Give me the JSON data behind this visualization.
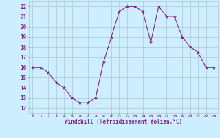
{
  "x": [
    0,
    1,
    2,
    3,
    4,
    5,
    6,
    7,
    8,
    9,
    10,
    11,
    12,
    13,
    14,
    15,
    16,
    17,
    18,
    19,
    20,
    21,
    22,
    23
  ],
  "y": [
    16,
    16,
    15.5,
    14.5,
    14,
    13,
    12.5,
    12.5,
    13,
    16.5,
    19,
    21.5,
    22,
    22,
    21.5,
    18.5,
    22,
    21,
    21,
    19,
    18,
    17.5,
    16,
    16
  ],
  "line_color": "#882288",
  "marker": "*",
  "marker_size": 3,
  "bg_color": "#cceeff",
  "grid_color": "#aabbbb",
  "xlabel": "Windchill (Refroidissement éolien,°C)",
  "xlabel_color": "#882288",
  "ylabel_ticks": [
    12,
    13,
    14,
    15,
    16,
    17,
    18,
    19,
    20,
    21,
    22
  ],
  "xtick_labels": [
    "0",
    "1",
    "2",
    "3",
    "4",
    "5",
    "6",
    "7",
    "8",
    "9",
    "10",
    "11",
    "12",
    "13",
    "14",
    "15",
    "16",
    "17",
    "18",
    "19",
    "20",
    "21",
    "22",
    "23"
  ],
  "ylim": [
    11.5,
    22.5
  ],
  "xlim": [
    -0.5,
    23.5
  ]
}
